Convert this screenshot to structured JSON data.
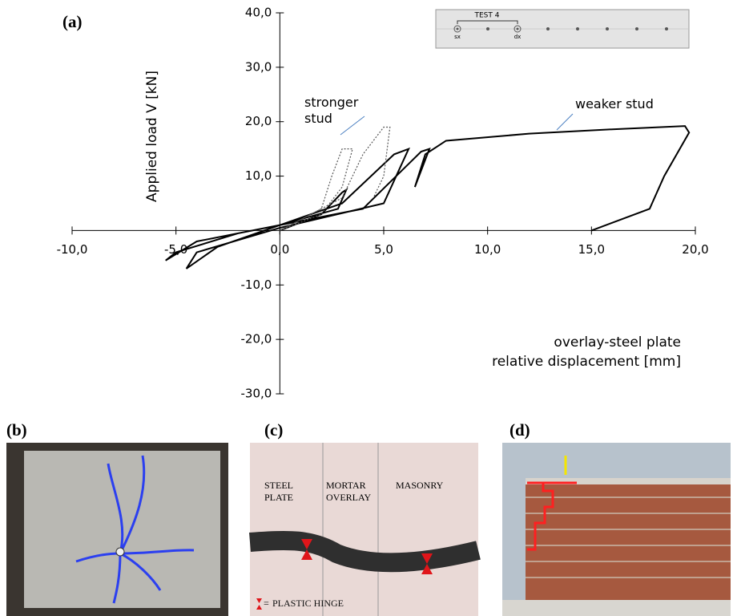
{
  "chart_data": {
    "type": "line",
    "panel_label": "(a)",
    "ylabel": "Applied load V [kN]",
    "xlabel": [
      "overlay-steel plate",
      "relative displacement [mm]"
    ],
    "xlim": [
      -10,
      20
    ],
    "ylim": [
      -30,
      40
    ],
    "xticks": [
      {
        "value": -10,
        "label": "-10,0"
      },
      {
        "value": -5,
        "label": "-5,0"
      },
      {
        "value": 0,
        "label": "0,0"
      },
      {
        "value": 5,
        "label": "5,0"
      },
      {
        "value": 10,
        "label": "10,0"
      },
      {
        "value": 15,
        "label": "15,0"
      },
      {
        "value": 20,
        "label": "20,0"
      }
    ],
    "yticks": [
      {
        "value": -30,
        "label": "-30,0"
      },
      {
        "value": -20,
        "label": "-20,0"
      },
      {
        "value": -10,
        "label": "-10,0"
      },
      {
        "value": 10,
        "label": "10,0"
      },
      {
        "value": 20,
        "label": "20,0"
      },
      {
        "value": 30,
        "label": "30,0"
      },
      {
        "value": 40,
        "label": "40,0"
      }
    ],
    "series": [
      {
        "name": "weaker stud",
        "color": "#000000",
        "style": "solid",
        "x": [
          0,
          2,
          3,
          3.2,
          2.8,
          0,
          -4,
          -5.5,
          -5,
          -2,
          0,
          3,
          5.5,
          6.2,
          5,
          0,
          -4,
          -4.5,
          -3,
          0,
          4,
          6.8,
          7.2,
          6.5,
          7,
          8,
          12,
          16,
          19.5,
          19.7,
          18.5,
          17.8,
          15
        ],
        "values": [
          0,
          3,
          7,
          7.5,
          4,
          1,
          -2,
          -5.5,
          -4,
          -0.5,
          1,
          5,
          14,
          15,
          5,
          0.5,
          -4,
          -7,
          -3,
          1,
          4,
          14.5,
          15,
          8,
          14,
          16.5,
          17.8,
          18.6,
          19.2,
          18,
          10,
          4,
          0
        ]
      },
      {
        "name": "stronger stud",
        "color": "#555555",
        "style": "dotted",
        "x": [
          0,
          2,
          2.5,
          3,
          3.5,
          3,
          2,
          0,
          3,
          4,
          5,
          5.3,
          5,
          4.5
        ],
        "values": [
          0,
          4,
          10,
          15,
          15,
          8,
          3,
          0,
          6,
          14,
          19,
          19,
          10,
          6
        ]
      }
    ],
    "inset": {
      "title": "TEST 4",
      "left": "sx",
      "right": "dx"
    }
  },
  "panels": {
    "b": {
      "label": "(b)"
    },
    "c": {
      "label": "(c)",
      "texts": [
        "STEEL PLATE",
        "MORTAR OVERLAY",
        "MASONRY"
      ],
      "legend_symbol": "=",
      "legend": "PLASTIC HINGE"
    },
    "d": {
      "label": "(d)"
    }
  }
}
